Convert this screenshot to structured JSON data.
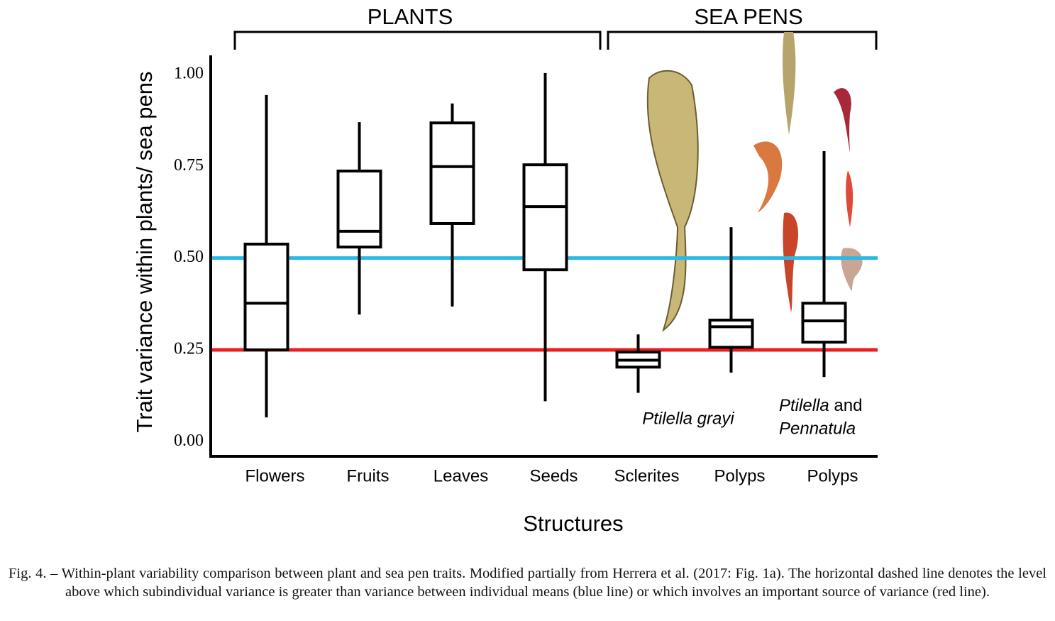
{
  "chart_data": {
    "type": "box",
    "xlabel": "Structures",
    "ylabel": "Trait variance within plants/ sea pens",
    "groups": [
      "PLANTS",
      "SEA PENS"
    ],
    "categories": [
      "Flowers",
      "Fruits",
      "Leaves",
      "Seeds",
      "Sclerites",
      "Polyps",
      "Polyps"
    ],
    "boxes": [
      {
        "min": 0.066,
        "q1": 0.25,
        "median": 0.377,
        "q3": 0.538,
        "max": 0.944
      },
      {
        "min": 0.346,
        "q1": 0.53,
        "median": 0.573,
        "q3": 0.737,
        "max": 0.87
      },
      {
        "min": 0.368,
        "q1": 0.594,
        "median": 0.749,
        "q3": 0.868,
        "max": 0.921
      },
      {
        "min": 0.11,
        "q1": 0.468,
        "median": 0.64,
        "q3": 0.754,
        "max": 1.004
      },
      {
        "min": 0.133,
        "q1": 0.203,
        "median": 0.222,
        "q3": 0.244,
        "max": 0.292
      },
      {
        "min": 0.188,
        "q1": 0.257,
        "median": 0.313,
        "q3": 0.331,
        "max": 0.584
      },
      {
        "min": 0.176,
        "q1": 0.271,
        "median": 0.329,
        "q3": 0.377,
        "max": 0.791
      }
    ],
    "reference_lines": [
      {
        "value": 0.5,
        "color": "#2bb8e3"
      },
      {
        "value": 0.25,
        "color": "#ee1c1c"
      }
    ],
    "ylim": [
      -0.04,
      1.052
    ],
    "yticks": [
      {
        "value": 0,
        "label": "0.00"
      },
      {
        "value": 0.25,
        "label": "0.25"
      },
      {
        "value": 0.5,
        "label": "0.50"
      },
      {
        "value": 0.75,
        "label": "0.75"
      },
      {
        "value": 1,
        "label": "1.00"
      }
    ],
    "annotations": [
      [
        "Ptilella grayi"
      ],
      [
        "Ptilella",
        "and",
        "Pennatula"
      ]
    ],
    "caption": "Fig. 4. – Within-plant variability comparison between plant and sea pen traits. Modified partially from Herrera et al. (2017: Fig. 1a). The horizontal dashed line denotes the level above which subindividual variance is greater than variance between individual means (blue line) or which involves an important source of variance (red line)."
  }
}
